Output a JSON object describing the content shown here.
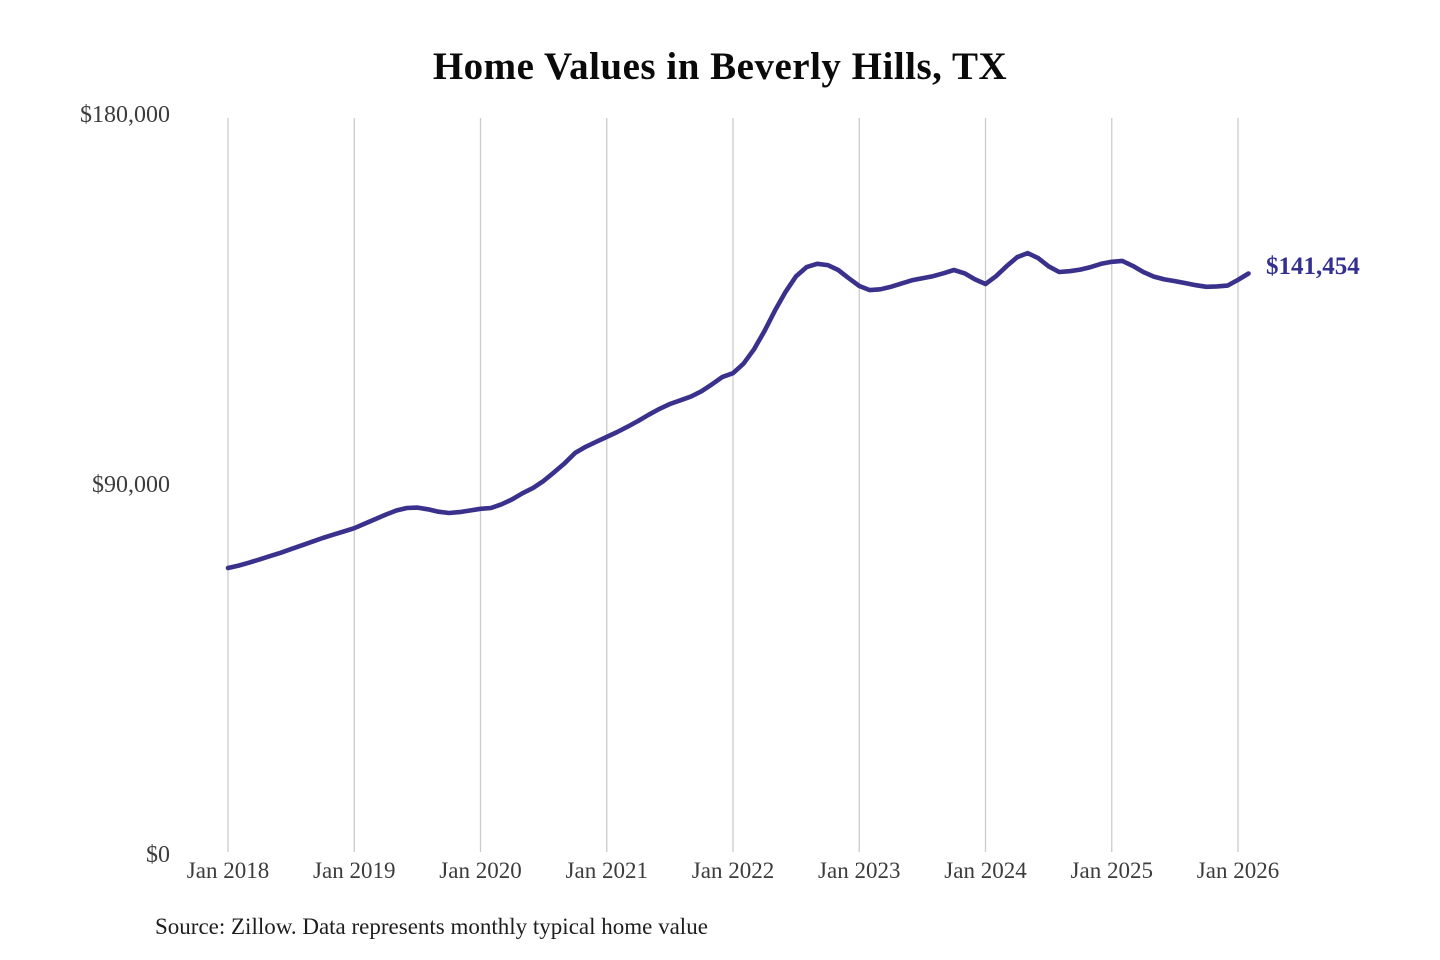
{
  "title": "Home Values in Beverly Hills, TX",
  "annotation": {
    "label": "$141,454"
  },
  "source_note": "Source: Zillow. Data represents monthly typical home value",
  "colors": {
    "line": "#3a318c",
    "annotation_text": "#333090",
    "grid": "#cbcbcb",
    "title_text": "#0a0a0a",
    "axis_label_text": "#3c3c3c",
    "background": "#ffffff"
  },
  "chart_data": {
    "type": "line",
    "title": "Home Values in Beverly Hills, TX",
    "xlabel": "",
    "ylabel": "",
    "unit": "USD",
    "legend": "none",
    "grid": "vertical-only",
    "ylim": [
      0,
      180000
    ],
    "y_tick_labels": [
      "$0",
      "$90,000",
      "$180,000"
    ],
    "y_tick_values": [
      0,
      90000,
      180000
    ],
    "x_tick_labels": [
      "Jan 2018",
      "Jan 2019",
      "Jan 2020",
      "Jan 2021",
      "Jan 2022",
      "Jan 2023",
      "Jan 2024",
      "Jan 2025",
      "Jan 2026"
    ],
    "x_interval": "month",
    "x_start_month": "2018-01",
    "x_end_month": "2026-02",
    "final_value": 141454,
    "final_value_label": "$141,454",
    "x_months": [
      "2018-01",
      "2018-02",
      "2018-03",
      "2018-04",
      "2018-05",
      "2018-06",
      "2018-07",
      "2018-08",
      "2018-09",
      "2018-10",
      "2018-11",
      "2018-12",
      "2019-01",
      "2019-02",
      "2019-03",
      "2019-04",
      "2019-05",
      "2019-06",
      "2019-07",
      "2019-08",
      "2019-09",
      "2019-10",
      "2019-11",
      "2019-12",
      "2020-01",
      "2020-02",
      "2020-03",
      "2020-04",
      "2020-05",
      "2020-06",
      "2020-07",
      "2020-08",
      "2020-09",
      "2020-10",
      "2020-11",
      "2020-12",
      "2021-01",
      "2021-02",
      "2021-03",
      "2021-04",
      "2021-05",
      "2021-06",
      "2021-07",
      "2021-08",
      "2021-09",
      "2021-10",
      "2021-11",
      "2021-12",
      "2022-01",
      "2022-02",
      "2022-03",
      "2022-04",
      "2022-05",
      "2022-06",
      "2022-07",
      "2022-08",
      "2022-09",
      "2022-10",
      "2022-11",
      "2022-12",
      "2023-01",
      "2023-02",
      "2023-03",
      "2023-04",
      "2023-05",
      "2023-06",
      "2023-07",
      "2023-08",
      "2023-09",
      "2023-10",
      "2023-11",
      "2023-12",
      "2024-01",
      "2024-02",
      "2024-03",
      "2024-04",
      "2024-05",
      "2024-06",
      "2024-07",
      "2024-08",
      "2024-09",
      "2024-10",
      "2024-11",
      "2024-12",
      "2025-01",
      "2025-02",
      "2025-03",
      "2025-04",
      "2025-05",
      "2025-06",
      "2025-07",
      "2025-08",
      "2025-09",
      "2025-10",
      "2025-11",
      "2025-12",
      "2026-01",
      "2026-02"
    ],
    "values": [
      69800,
      70400,
      71100,
      71900,
      72700,
      73500,
      74400,
      75300,
      76200,
      77100,
      77900,
      78700,
      79500,
      80600,
      81700,
      82800,
      83800,
      84400,
      84500,
      84100,
      83500,
      83200,
      83400,
      83800,
      84200,
      84400,
      85300,
      86500,
      88000,
      89300,
      91000,
      93100,
      95300,
      97800,
      99300,
      100500,
      101700,
      102900,
      104200,
      105600,
      107100,
      108500,
      109700,
      110600,
      111500,
      112800,
      114500,
      116300,
      117200,
      119500,
      123000,
      127500,
      132500,
      137000,
      140800,
      143000,
      143800,
      143500,
      142300,
      140300,
      138400,
      137400,
      137600,
      138200,
      139000,
      139800,
      140300,
      140800,
      141500,
      142300,
      141500,
      140000,
      138900,
      140800,
      143200,
      145400,
      146400,
      145200,
      143200,
      141800,
      142000,
      142400,
      143000,
      143800,
      144300,
      144500,
      143300,
      141800,
      140700,
      140000,
      139600,
      139100,
      138600,
      138200,
      138300,
      138500,
      139900,
      141454
    ]
  }
}
